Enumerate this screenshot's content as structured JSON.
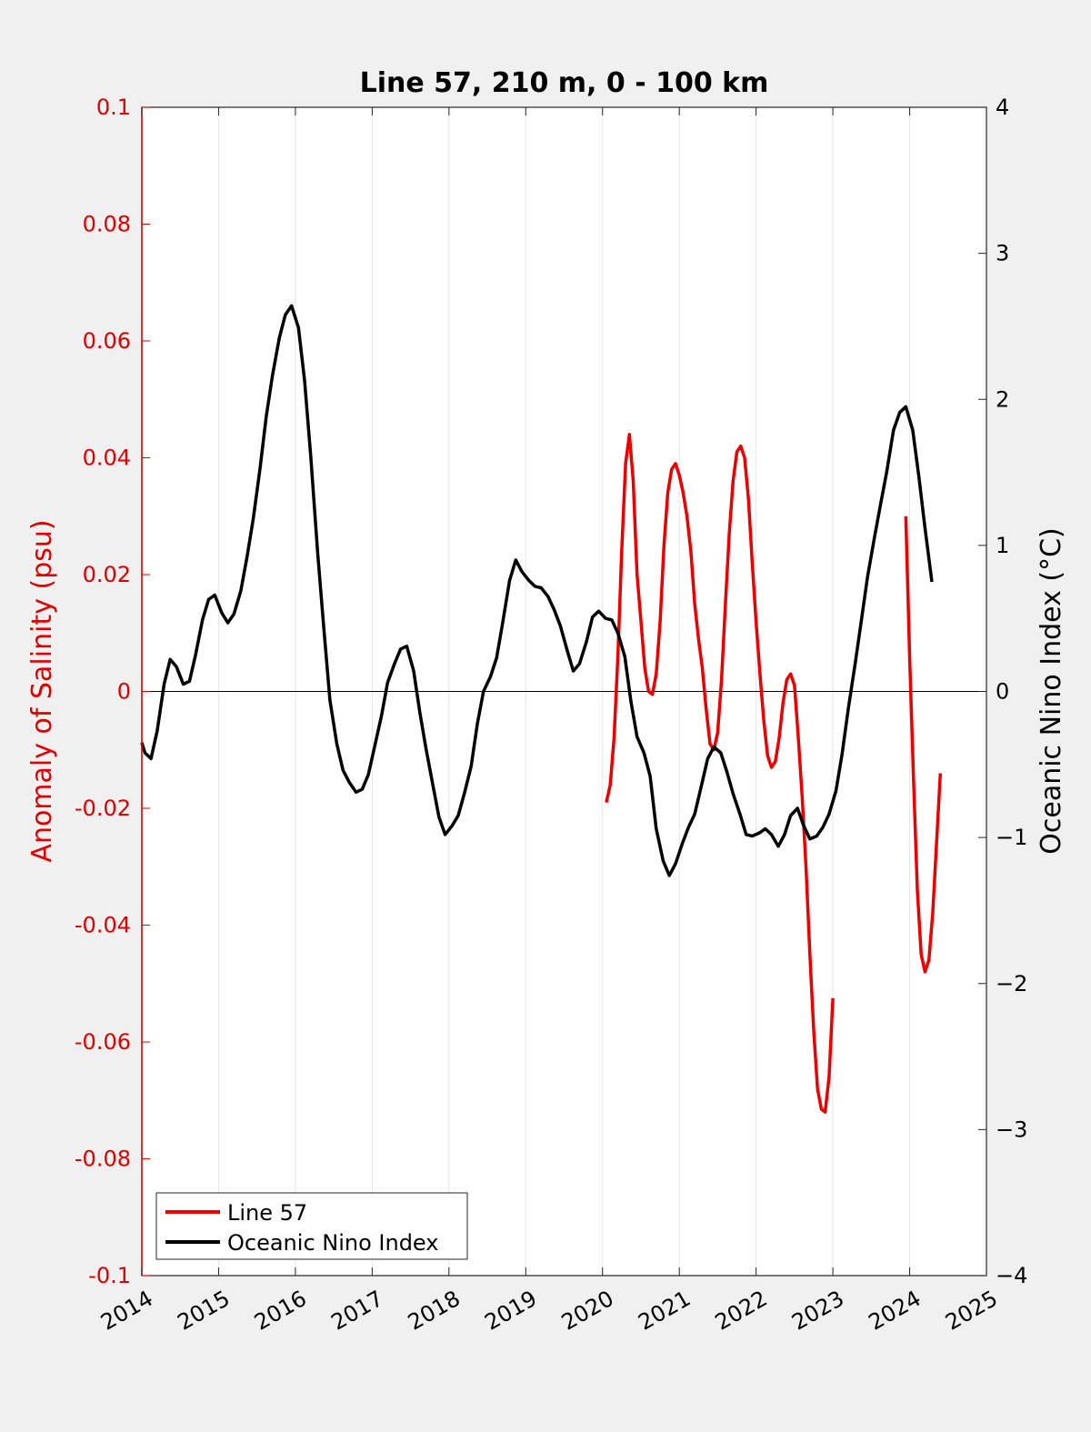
{
  "chart_data": {
    "type": "line",
    "title": "Line 57, 210 m, 0 - 100 km",
    "xlabel": "",
    "ylabel_left": "Anomaly of Salinity (psu)",
    "ylabel_right": "Oceanic Nino Index (°C)",
    "xlim": [
      2014,
      2025
    ],
    "ylim_left": [
      -0.1,
      0.1
    ],
    "ylim_right": [
      -4,
      4
    ],
    "x_ticks": [
      "2014",
      "2015",
      "2016",
      "2017",
      "2018",
      "2019",
      "2020",
      "2021",
      "2022",
      "2023",
      "2024",
      "2025"
    ],
    "y_left_ticks": [
      "0.1",
      "0.08",
      "0.06",
      "0.04",
      "0.02",
      "0",
      "-0.02",
      "-0.04",
      "-0.06",
      "-0.08",
      "-0.1"
    ],
    "y_right_ticks": [
      "4",
      "3",
      "2",
      "1",
      "0",
      "-1",
      "-2",
      "-3",
      "-4"
    ],
    "grid": "vertical",
    "legend_position": "bottom-left",
    "colors": {
      "line57": "#ee0000",
      "oni": "#000000",
      "left_axis": "#e00000",
      "right_axis": "#000000"
    },
    "series": [
      {
        "name": "Line 57",
        "axis": "left",
        "color": "#ee0000",
        "segments": [
          [
            [
              2020.05,
              -0.019
            ],
            [
              2020.1,
              -0.016
            ],
            [
              2020.15,
              -0.008
            ],
            [
              2020.2,
              0.006
            ],
            [
              2020.25,
              0.024
            ],
            [
              2020.3,
              0.039
            ],
            [
              2020.35,
              0.044
            ],
            [
              2020.4,
              0.036
            ],
            [
              2020.45,
              0.02
            ],
            [
              2020.5,
              0.012
            ],
            [
              2020.55,
              0.004
            ],
            [
              2020.6,
              0.0
            ],
            [
              2020.65,
              -0.0005
            ],
            [
              2020.7,
              0.003
            ],
            [
              2020.75,
              0.012
            ],
            [
              2020.8,
              0.025
            ],
            [
              2020.85,
              0.034
            ],
            [
              2020.9,
              0.038
            ],
            [
              2020.95,
              0.039
            ],
            [
              2021.0,
              0.037
            ],
            [
              2021.05,
              0.034
            ],
            [
              2021.1,
              0.03
            ],
            [
              2021.15,
              0.024
            ],
            [
              2021.2,
              0.015
            ],
            [
              2021.25,
              0.009
            ],
            [
              2021.3,
              0.004
            ],
            [
              2021.35,
              -0.003
            ],
            [
              2021.4,
              -0.009
            ],
            [
              2021.45,
              -0.01
            ],
            [
              2021.5,
              -0.007
            ],
            [
              2021.55,
              0.002
            ],
            [
              2021.6,
              0.015
            ],
            [
              2021.65,
              0.027
            ],
            [
              2021.7,
              0.036
            ],
            [
              2021.75,
              0.041
            ],
            [
              2021.8,
              0.042
            ],
            [
              2021.85,
              0.04
            ],
            [
              2021.9,
              0.033
            ],
            [
              2021.95,
              0.022
            ],
            [
              2022.0,
              0.012
            ],
            [
              2022.05,
              0.003
            ],
            [
              2022.1,
              -0.005
            ],
            [
              2022.15,
              -0.011
            ],
            [
              2022.2,
              -0.013
            ],
            [
              2022.25,
              -0.012
            ],
            [
              2022.3,
              -0.008
            ],
            [
              2022.35,
              -0.002
            ],
            [
              2022.4,
              0.002
            ],
            [
              2022.45,
              0.003
            ],
            [
              2022.5,
              0.001
            ],
            [
              2022.55,
              -0.008
            ],
            [
              2022.6,
              -0.018
            ],
            [
              2022.65,
              -0.03
            ],
            [
              2022.7,
              -0.045
            ],
            [
              2022.75,
              -0.058
            ],
            [
              2022.8,
              -0.068
            ],
            [
              2022.85,
              -0.0715
            ],
            [
              2022.9,
              -0.072
            ],
            [
              2022.95,
              -0.066
            ],
            [
              2023.0,
              -0.0525
            ]
          ],
          [
            [
              2023.95,
              0.03
            ],
            [
              2024.0,
              0.006
            ],
            [
              2024.05,
              -0.015
            ],
            [
              2024.1,
              -0.034
            ],
            [
              2024.15,
              -0.045
            ],
            [
              2024.2,
              -0.048
            ],
            [
              2024.25,
              -0.046
            ],
            [
              2024.3,
              -0.038
            ],
            [
              2024.35,
              -0.026
            ],
            [
              2024.4,
              -0.014
            ]
          ]
        ]
      },
      {
        "name": "Oceanic Nino Index",
        "axis": "right",
        "color": "#000000",
        "segments": [
          [
            [
              2014.0,
              -0.35
            ],
            [
              2014.04,
              -0.42
            ],
            [
              2014.12,
              -0.46
            ],
            [
              2014.2,
              -0.27
            ],
            [
              2014.29,
              0.05
            ],
            [
              2014.37,
              0.22
            ],
            [
              2014.45,
              0.17
            ],
            [
              2014.54,
              0.05
            ],
            [
              2014.62,
              0.07
            ],
            [
              2014.7,
              0.25
            ],
            [
              2014.79,
              0.49
            ],
            [
              2014.87,
              0.63
            ],
            [
              2014.95,
              0.66
            ],
            [
              2015.04,
              0.54
            ],
            [
              2015.12,
              0.47
            ],
            [
              2015.2,
              0.53
            ],
            [
              2015.29,
              0.69
            ],
            [
              2015.37,
              0.92
            ],
            [
              2015.45,
              1.18
            ],
            [
              2015.54,
              1.53
            ],
            [
              2015.62,
              1.88
            ],
            [
              2015.7,
              2.16
            ],
            [
              2015.79,
              2.42
            ],
            [
              2015.87,
              2.58
            ],
            [
              2015.95,
              2.64
            ],
            [
              2016.04,
              2.49
            ],
            [
              2016.12,
              2.13
            ],
            [
              2016.2,
              1.61
            ],
            [
              2016.29,
              0.95
            ],
            [
              2016.37,
              0.43
            ],
            [
              2016.45,
              -0.06
            ],
            [
              2016.54,
              -0.36
            ],
            [
              2016.62,
              -0.54
            ],
            [
              2016.7,
              -0.62
            ],
            [
              2016.79,
              -0.69
            ],
            [
              2016.87,
              -0.67
            ],
            [
              2016.95,
              -0.57
            ],
            [
              2017.04,
              -0.36
            ],
            [
              2017.12,
              -0.17
            ],
            [
              2017.2,
              0.06
            ],
            [
              2017.29,
              0.19
            ],
            [
              2017.37,
              0.29
            ],
            [
              2017.45,
              0.31
            ],
            [
              2017.54,
              0.14
            ],
            [
              2017.62,
              -0.14
            ],
            [
              2017.7,
              -0.39
            ],
            [
              2017.79,
              -0.64
            ],
            [
              2017.87,
              -0.86
            ],
            [
              2017.95,
              -0.98
            ],
            [
              2018.04,
              -0.92
            ],
            [
              2018.12,
              -0.85
            ],
            [
              2018.2,
              -0.7
            ],
            [
              2018.29,
              -0.51
            ],
            [
              2018.37,
              -0.22
            ],
            [
              2018.45,
              0.0
            ],
            [
              2018.54,
              0.1
            ],
            [
              2018.62,
              0.23
            ],
            [
              2018.7,
              0.47
            ],
            [
              2018.79,
              0.76
            ],
            [
              2018.87,
              0.9
            ],
            [
              2018.95,
              0.82
            ],
            [
              2019.04,
              0.76
            ],
            [
              2019.12,
              0.72
            ],
            [
              2019.2,
              0.71
            ],
            [
              2019.29,
              0.65
            ],
            [
              2019.37,
              0.56
            ],
            [
              2019.45,
              0.45
            ],
            [
              2019.54,
              0.28
            ],
            [
              2019.62,
              0.14
            ],
            [
              2019.7,
              0.19
            ],
            [
              2019.79,
              0.34
            ],
            [
              2019.87,
              0.51
            ],
            [
              2019.95,
              0.55
            ],
            [
              2020.04,
              0.5
            ],
            [
              2020.12,
              0.49
            ],
            [
              2020.2,
              0.4
            ],
            [
              2020.29,
              0.24
            ],
            [
              2020.37,
              -0.07
            ],
            [
              2020.45,
              -0.31
            ],
            [
              2020.54,
              -0.42
            ],
            [
              2020.62,
              -0.58
            ],
            [
              2020.7,
              -0.94
            ],
            [
              2020.79,
              -1.16
            ],
            [
              2020.87,
              -1.26
            ],
            [
              2020.95,
              -1.18
            ],
            [
              2021.04,
              -1.04
            ],
            [
              2021.12,
              -0.93
            ],
            [
              2021.2,
              -0.84
            ],
            [
              2021.29,
              -0.64
            ],
            [
              2021.37,
              -0.46
            ],
            [
              2021.45,
              -0.38
            ],
            [
              2021.54,
              -0.42
            ],
            [
              2021.62,
              -0.55
            ],
            [
              2021.7,
              -0.7
            ],
            [
              2021.79,
              -0.84
            ],
            [
              2021.87,
              -0.98
            ],
            [
              2021.95,
              -0.99
            ],
            [
              2022.04,
              -0.97
            ],
            [
              2022.12,
              -0.94
            ],
            [
              2022.2,
              -0.98
            ],
            [
              2022.29,
              -1.06
            ],
            [
              2022.37,
              -0.98
            ],
            [
              2022.45,
              -0.85
            ],
            [
              2022.54,
              -0.8
            ],
            [
              2022.62,
              -0.92
            ],
            [
              2022.7,
              -1.01
            ],
            [
              2022.79,
              -0.99
            ],
            [
              2022.87,
              -0.93
            ],
            [
              2022.95,
              -0.84
            ],
            [
              2023.04,
              -0.68
            ],
            [
              2023.12,
              -0.43
            ],
            [
              2023.2,
              -0.12
            ],
            [
              2023.29,
              0.19
            ],
            [
              2023.37,
              0.48
            ],
            [
              2023.45,
              0.78
            ],
            [
              2023.54,
              1.05
            ],
            [
              2023.62,
              1.28
            ],
            [
              2023.7,
              1.5
            ],
            [
              2023.79,
              1.79
            ],
            [
              2023.87,
              1.91
            ],
            [
              2023.95,
              1.95
            ],
            [
              2024.04,
              1.79
            ],
            [
              2024.12,
              1.47
            ],
            [
              2024.2,
              1.12
            ],
            [
              2024.29,
              0.75
            ]
          ]
        ]
      }
    ]
  },
  "legend": [
    {
      "label": "Line 57",
      "color": "#ee0000"
    },
    {
      "label": "Oceanic Nino Index",
      "color": "#000000"
    }
  ]
}
